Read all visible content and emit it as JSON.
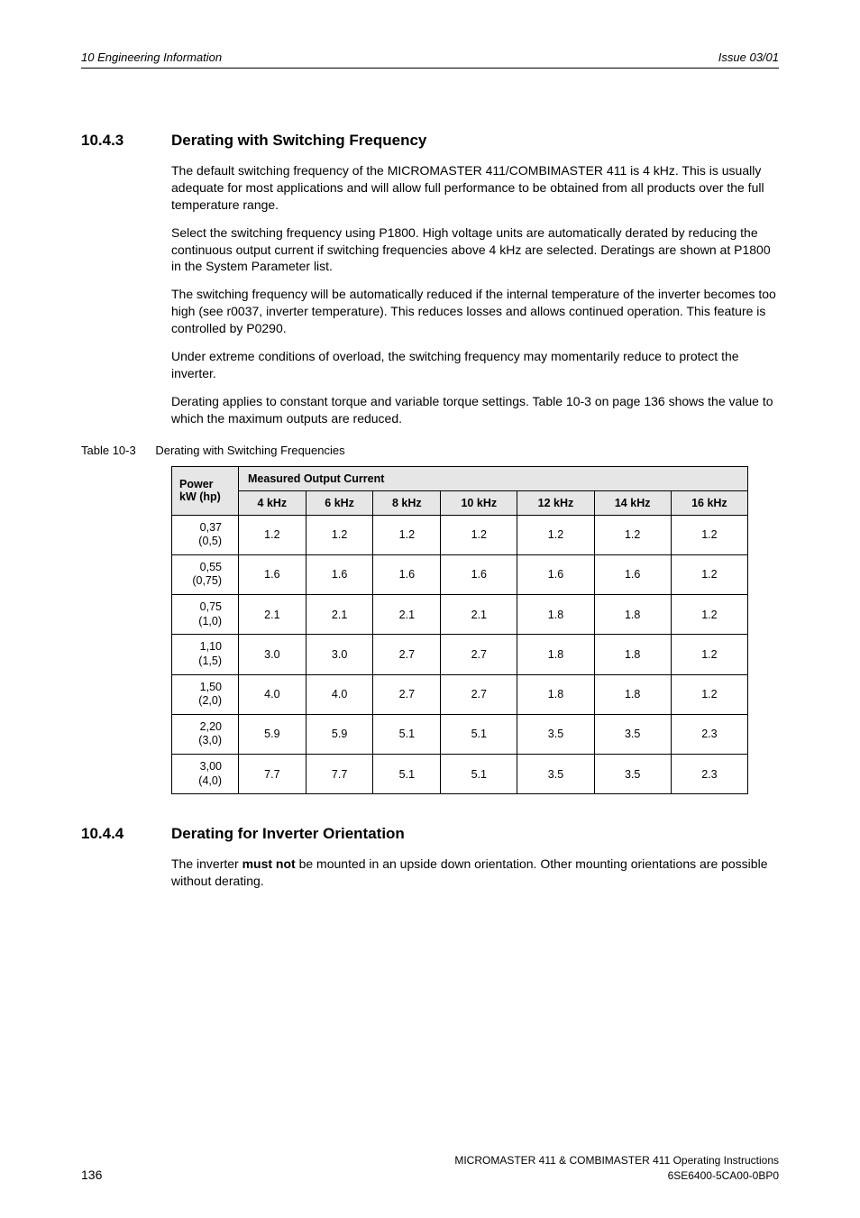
{
  "header": {
    "left": "10  Engineering Information",
    "right": "Issue 03/01"
  },
  "section1": {
    "number": "10.4.3",
    "title": "Derating with Switching Frequency",
    "p1": "The default switching frequency of the MICROMASTER 411/COMBIMASTER 411 is 4 kHz. This is usually adequate for most applications and will allow full performance to be obtained from all products over the full temperature range.",
    "p2": "Select the switching frequency using P1800. High voltage units are automatically derated by reducing the continuous output current if switching frequencies above 4 kHz are selected. Deratings are shown at P1800 in the System Parameter list.",
    "p3": "The switching frequency will be automatically reduced if the internal temperature of the inverter becomes too high (see r0037, inverter temperature). This reduces losses and allows continued operation. This feature is controlled by P0290.",
    "p4": "Under extreme conditions of overload, the switching frequency may momentarily reduce to protect the inverter.",
    "p5": "Derating applies to constant torque and variable torque settings. Table 10-3 on page 136 shows the value to which the maximum outputs are reduced."
  },
  "table": {
    "caption_label": "Table 10-3",
    "caption_text": "Derating with Switching Frequencies",
    "header_power_l1": "Power",
    "header_power_l2": "kW (hp)",
    "header_measured": "Measured Output Current",
    "cols": [
      "4 kHz",
      "6 kHz",
      "8 kHz",
      "10 kHz",
      "12 kHz",
      "14 kHz",
      "16 kHz"
    ],
    "rows": [
      {
        "p1": "0,37",
        "p2": "(0,5)",
        "v": [
          "1.2",
          "1.2",
          "1.2",
          "1.2",
          "1.2",
          "1.2",
          "1.2"
        ]
      },
      {
        "p1": "0,55",
        "p2": "(0,75)",
        "v": [
          "1.6",
          "1.6",
          "1.6",
          "1.6",
          "1.6",
          "1.6",
          "1.2"
        ]
      },
      {
        "p1": "0,75",
        "p2": "(1,0)",
        "v": [
          "2.1",
          "2.1",
          "2.1",
          "2.1",
          "1.8",
          "1.8",
          "1.2"
        ]
      },
      {
        "p1": "1,10",
        "p2": "(1,5)",
        "v": [
          "3.0",
          "3.0",
          "2.7",
          "2.7",
          "1.8",
          "1.8",
          "1.2"
        ]
      },
      {
        "p1": "1,50",
        "p2": "(2,0)",
        "v": [
          "4.0",
          "4.0",
          "2.7",
          "2.7",
          "1.8",
          "1.8",
          "1.2"
        ]
      },
      {
        "p1": "2,20",
        "p2": "(3,0)",
        "v": [
          "5.9",
          "5.9",
          "5.1",
          "5.1",
          "3.5",
          "3.5",
          "2.3"
        ]
      },
      {
        "p1": "3,00",
        "p2": "(4,0)",
        "v": [
          "7.7",
          "7.7",
          "5.1",
          "5.1",
          "3.5",
          "3.5",
          "2.3"
        ]
      }
    ]
  },
  "section2": {
    "number": "10.4.4",
    "title": "Derating for Inverter Orientation",
    "p1_a": "The inverter ",
    "p1_b": "must not",
    "p1_c": " be mounted in an upside down orientation. Other mounting orientations are possible without derating."
  },
  "footer": {
    "line1": "MICROMASTER 411 & COMBIMASTER 411     Operating Instructions",
    "line2": "6SE6400-5CA00-0BP0",
    "page": "136"
  }
}
